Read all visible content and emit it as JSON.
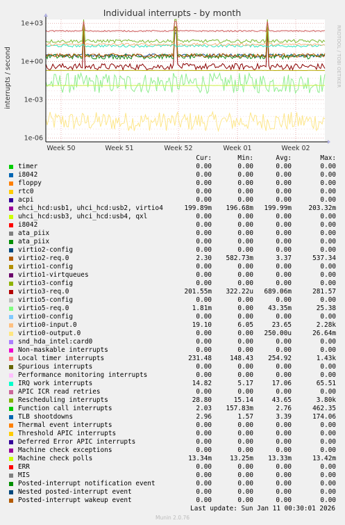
{
  "chart_data": {
    "type": "line",
    "title": "Individual interrupts - by month",
    "ylabel": "interrupts / second",
    "yscale": "log",
    "ylim": [
      5e-07,
      2000
    ],
    "yticks": [
      "1e+03",
      "1e+00",
      "1e-03",
      "1e-06"
    ],
    "xticks": [
      "Week 50",
      "Week 51",
      "Week 52",
      "Week 01",
      "Week 02"
    ],
    "side_label": "RRDTOOL / TOBI OETIKER",
    "series_colors": {
      "local_timer": "#cc5555",
      "virtio3_req": "#8b0000",
      "virtio5_req": "#90ee90",
      "virtio0_input": "#f4b980",
      "virtio0_output": "#fde68a",
      "ehci": "#b7a900",
      "irq_work": "#2ee6c0",
      "rescheduling": "#7ab92f",
      "function_call": "#1a8a1a",
      "tlb": "#1f4e8c",
      "virtio2_req": "#b45a00",
      "machine_check_polls": "#ccee44"
    }
  },
  "legend": {
    "headers": [
      "Cur:",
      "Min:",
      "Avg:",
      "Max:"
    ],
    "rows": [
      {
        "name": "timer",
        "color": "#00cc00",
        "cur": "0.00",
        "min": "0.00",
        "avg": "0.00",
        "max": "0.00"
      },
      {
        "name": "i8042",
        "color": "#0066b3",
        "cur": "0.00",
        "min": "0.00",
        "avg": "0.00",
        "max": "0.00"
      },
      {
        "name": "floppy",
        "color": "#ff8000",
        "cur": "0.00",
        "min": "0.00",
        "avg": "0.00",
        "max": "0.00"
      },
      {
        "name": "rtc0",
        "color": "#ffcc00",
        "cur": "0.00",
        "min": "0.00",
        "avg": "0.00",
        "max": "0.00"
      },
      {
        "name": "acpi",
        "color": "#330099",
        "cur": "0.00",
        "min": "0.00",
        "avg": "0.00",
        "max": "0.00"
      },
      {
        "name": "ehci_hcd:usb1, uhci_hcd:usb2, virtio4",
        "color": "#990099",
        "cur": "199.89m",
        "min": "196.68m",
        "avg": "199.99m",
        "max": "203.32m"
      },
      {
        "name": "uhci_hcd:usb3, uhci_hcd:usb4, qxl",
        "color": "#ccff00",
        "cur": "0.00",
        "min": "0.00",
        "avg": "0.00",
        "max": "0.00"
      },
      {
        "name": "i8042",
        "color": "#ff0000",
        "cur": "0.00",
        "min": "0.00",
        "avg": "0.00",
        "max": "0.00"
      },
      {
        "name": "ata_piix",
        "color": "#808080",
        "cur": "0.00",
        "min": "0.00",
        "avg": "0.00",
        "max": "0.00"
      },
      {
        "name": "ata_piix",
        "color": "#008f00",
        "cur": "0.00",
        "min": "0.00",
        "avg": "0.00",
        "max": "0.00"
      },
      {
        "name": "virtio2-config",
        "color": "#00487d",
        "cur": "0.00",
        "min": "0.00",
        "avg": "0.00",
        "max": "0.00"
      },
      {
        "name": "virtio2-req.0",
        "color": "#b35a00",
        "cur": "2.30",
        "min": "582.73m",
        "avg": "3.37",
        "max": "537.34"
      },
      {
        "name": "virtio1-config",
        "color": "#b38f00",
        "cur": "0.00",
        "min": "0.00",
        "avg": "0.00",
        "max": "0.00"
      },
      {
        "name": "virtio1-virtqueues",
        "color": "#6b006b",
        "cur": "0.00",
        "min": "0.00",
        "avg": "0.00",
        "max": "0.00"
      },
      {
        "name": "virtio3-config",
        "color": "#8fb300",
        "cur": "0.00",
        "min": "0.00",
        "avg": "0.00",
        "max": "0.00"
      },
      {
        "name": "virtio3-req.0",
        "color": "#b30000",
        "cur": "201.55m",
        "min": "322.22u",
        "avg": "689.06m",
        "max": "281.57"
      },
      {
        "name": "virtio5-config",
        "color": "#bebebe",
        "cur": "0.00",
        "min": "0.00",
        "avg": "0.00",
        "max": "0.00"
      },
      {
        "name": "virtio5-req.0",
        "color": "#80ff80",
        "cur": "1.81m",
        "min": "0.00",
        "avg": "43.35m",
        "max": "25.38"
      },
      {
        "name": "virtio0-config",
        "color": "#80c9ff",
        "cur": "0.00",
        "min": "0.00",
        "avg": "0.00",
        "max": "0.00"
      },
      {
        "name": "virtio0-input.0",
        "color": "#ffc080",
        "cur": "19.10",
        "min": "6.05",
        "avg": "23.65",
        "max": "2.28k"
      },
      {
        "name": "virtio0-output.0",
        "color": "#ffe680",
        "cur": "0.00",
        "min": "0.00",
        "avg": "250.00u",
        "max": "26.64m"
      },
      {
        "name": "snd_hda_intel:card0",
        "color": "#aa80ff",
        "cur": "0.00",
        "min": "0.00",
        "avg": "0.00",
        "max": "0.00"
      },
      {
        "name": "Non-maskable interrupts",
        "color": "#ee00cc",
        "cur": "0.00",
        "min": "0.00",
        "avg": "0.00",
        "max": "0.00"
      },
      {
        "name": "Local timer interrupts",
        "color": "#ff8080",
        "cur": "231.48",
        "min": "148.43",
        "avg": "254.92",
        "max": "1.43k"
      },
      {
        "name": "Spurious interrupts",
        "color": "#666600",
        "cur": "0.00",
        "min": "0.00",
        "avg": "0.00",
        "max": "0.00"
      },
      {
        "name": "Performance monitoring interrupts",
        "color": "#ffbfff",
        "cur": "0.00",
        "min": "0.00",
        "avg": "0.00",
        "max": "0.00"
      },
      {
        "name": "IRQ work interrupts",
        "color": "#00ffcc",
        "cur": "14.82",
        "min": "5.17",
        "avg": "17.06",
        "max": "65.51"
      },
      {
        "name": "APIC ICR read retries",
        "color": "#cc6699",
        "cur": "0.00",
        "min": "0.00",
        "avg": "0.00",
        "max": "0.00"
      },
      {
        "name": "Rescheduling interrupts",
        "color": "#80b300",
        "cur": "28.80",
        "min": "15.14",
        "avg": "43.65",
        "max": "3.80k"
      },
      {
        "name": "Function call interrupts",
        "color": "#00cc00",
        "cur": "2.03",
        "min": "157.83m",
        "avg": "2.76",
        "max": "462.35"
      },
      {
        "name": "TLB shootdowns",
        "color": "#0066b3",
        "cur": "2.96",
        "min": "1.57",
        "avg": "3.39",
        "max": "174.06"
      },
      {
        "name": "Thermal event interrupts",
        "color": "#ff8000",
        "cur": "0.00",
        "min": "0.00",
        "avg": "0.00",
        "max": "0.00"
      },
      {
        "name": "Threshold APIC interrupts",
        "color": "#ffcc00",
        "cur": "0.00",
        "min": "0.00",
        "avg": "0.00",
        "max": "0.00"
      },
      {
        "name": "Deferred Error APIC interrupts",
        "color": "#330099",
        "cur": "0.00",
        "min": "0.00",
        "avg": "0.00",
        "max": "0.00"
      },
      {
        "name": "Machine check exceptions",
        "color": "#990099",
        "cur": "0.00",
        "min": "0.00",
        "avg": "0.00",
        "max": "0.00"
      },
      {
        "name": "Machine check polls",
        "color": "#ccff00",
        "cur": "13.34m",
        "min": "13.25m",
        "avg": "13.33m",
        "max": "13.42m"
      },
      {
        "name": "ERR",
        "color": "#ff0000",
        "cur": "0.00",
        "min": "0.00",
        "avg": "0.00",
        "max": "0.00"
      },
      {
        "name": "MIS",
        "color": "#808080",
        "cur": "0.00",
        "min": "0.00",
        "avg": "0.00",
        "max": "0.00"
      },
      {
        "name": "Posted-interrupt notification event",
        "color": "#008f00",
        "cur": "0.00",
        "min": "0.00",
        "avg": "0.00",
        "max": "0.00"
      },
      {
        "name": "Nested posted-interrupt event",
        "color": "#00487d",
        "cur": "0.00",
        "min": "0.00",
        "avg": "0.00",
        "max": "0.00"
      },
      {
        "name": "Posted-interrupt wakeup event",
        "color": "#b35a00",
        "cur": "0.00",
        "min": "0.00",
        "avg": "0.00",
        "max": "0.00"
      }
    ]
  },
  "last_update": "Last update: Sun Jan 11 00:30:01 2026",
  "footer": "Munin 2.0.76"
}
